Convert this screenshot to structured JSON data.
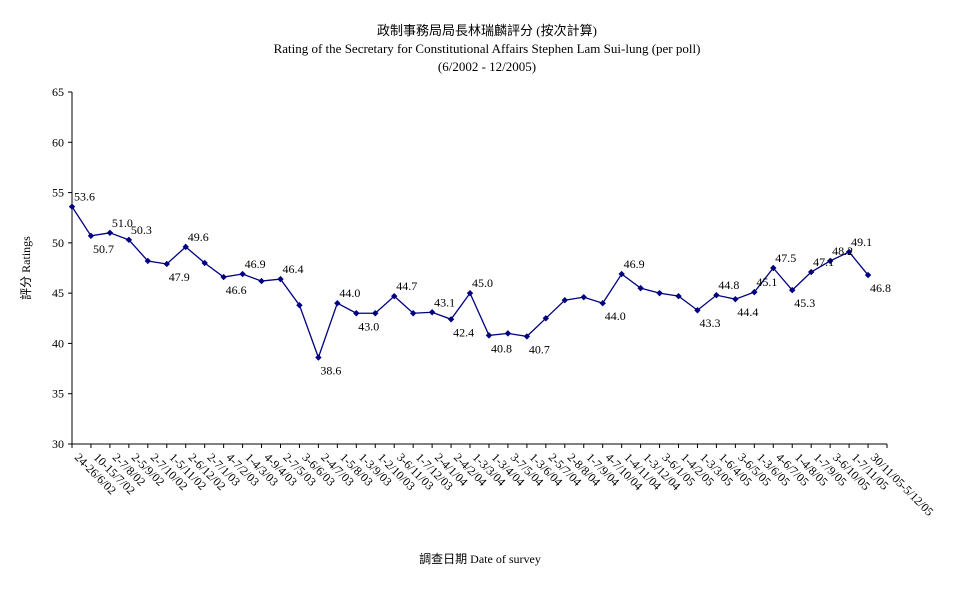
{
  "chart_data": {
    "type": "line",
    "title": "政制事務局局長林瑞麟評分 (按次計算)",
    "subtitle": "Rating of the Secretary for Constitutional Affairs Stephen Lam Sui-lung (per poll)",
    "period": "(6/2002 - 12/2005)",
    "xlabel": "調查日期 Date of survey",
    "ylabel": "評分 Ratings",
    "ylim": [
      30,
      65
    ],
    "yticks": [
      30,
      35,
      40,
      45,
      50,
      55,
      60,
      65
    ],
    "grid": false,
    "legend": "none",
    "line_color": "#000080",
    "x_tick_labels": [
      "24-26/6/02",
      "10-15/7/02",
      "2-7/8/02",
      "2-5/9/02",
      "2-7/10/02",
      "1-5/11/02",
      "2-6/12/02",
      "2-7/1/03",
      "4-7/2/03",
      "1-4/3/03",
      "4-9/4/03",
      "2-7/5/03",
      "3-6/6/03",
      "2-4/7/03",
      "1-5/8/03",
      "1-3/9/03",
      "1-2/10/03",
      "3-6/11/03",
      "1-7/12/03",
      "2-4/1/04",
      "2-4/2/04",
      "1-3/3/04",
      "1-3/4/04",
      "3-7/5/04",
      "1-3/6/04",
      "2-5/7/04",
      "2-8/8/04",
      "1-7/9/04",
      "4-7/10/04",
      "1-4/11/04",
      "1-3/12/04",
      "3-6/1/05",
      "1-4/2/05",
      "1-3/3/05",
      "1-6/4/05",
      "3-6/5/05",
      "1-3/6/05",
      "4-6/7/05",
      "1-4/8/05",
      "1-7/9/05",
      "3-6/10/05",
      "1-7/11/05",
      "30/11/05-5/12/05"
    ],
    "values": [
      53.6,
      50.7,
      51.0,
      50.3,
      48.2,
      47.9,
      49.6,
      48.0,
      46.6,
      46.9,
      46.2,
      46.4,
      43.8,
      38.6,
      44.0,
      43.0,
      43.0,
      44.7,
      43.0,
      43.1,
      42.4,
      45.0,
      40.8,
      41.0,
      40.7,
      42.5,
      44.3,
      44.6,
      44.0,
      46.9,
      45.5,
      45.0,
      44.7,
      43.3,
      44.8,
      44.4,
      45.1,
      47.5,
      45.3,
      47.1,
      48.2,
      49.1,
      46.8
    ],
    "data_labels": [
      {
        "i": 0,
        "text": "53.6"
      },
      {
        "i": 1,
        "text": "50.7"
      },
      {
        "i": 2,
        "text": "51.0"
      },
      {
        "i": 3,
        "text": "50.3"
      },
      {
        "i": 5,
        "text": "47.9"
      },
      {
        "i": 6,
        "text": "49.6"
      },
      {
        "i": 8,
        "text": "46.6"
      },
      {
        "i": 9,
        "text": "46.9"
      },
      {
        "i": 11,
        "text": "46.4"
      },
      {
        "i": 13,
        "text": "38.6"
      },
      {
        "i": 14,
        "text": "44.0"
      },
      {
        "i": 15,
        "text": "43.0"
      },
      {
        "i": 17,
        "text": "44.7"
      },
      {
        "i": 19,
        "text": "43.1"
      },
      {
        "i": 20,
        "text": "42.4"
      },
      {
        "i": 21,
        "text": "45.0"
      },
      {
        "i": 22,
        "text": "40.8"
      },
      {
        "i": 24,
        "text": "40.7"
      },
      {
        "i": 28,
        "text": "44.0"
      },
      {
        "i": 29,
        "text": "46.9"
      },
      {
        "i": 33,
        "text": "43.3"
      },
      {
        "i": 34,
        "text": "44.8"
      },
      {
        "i": 35,
        "text": "44.4"
      },
      {
        "i": 36,
        "text": "45.1"
      },
      {
        "i": 37,
        "text": "47.5"
      },
      {
        "i": 38,
        "text": "45.3"
      },
      {
        "i": 39,
        "text": "47.1"
      },
      {
        "i": 40,
        "text": "48.2"
      },
      {
        "i": 41,
        "text": "49.1"
      },
      {
        "i": 42,
        "text": "46.8"
      }
    ]
  }
}
